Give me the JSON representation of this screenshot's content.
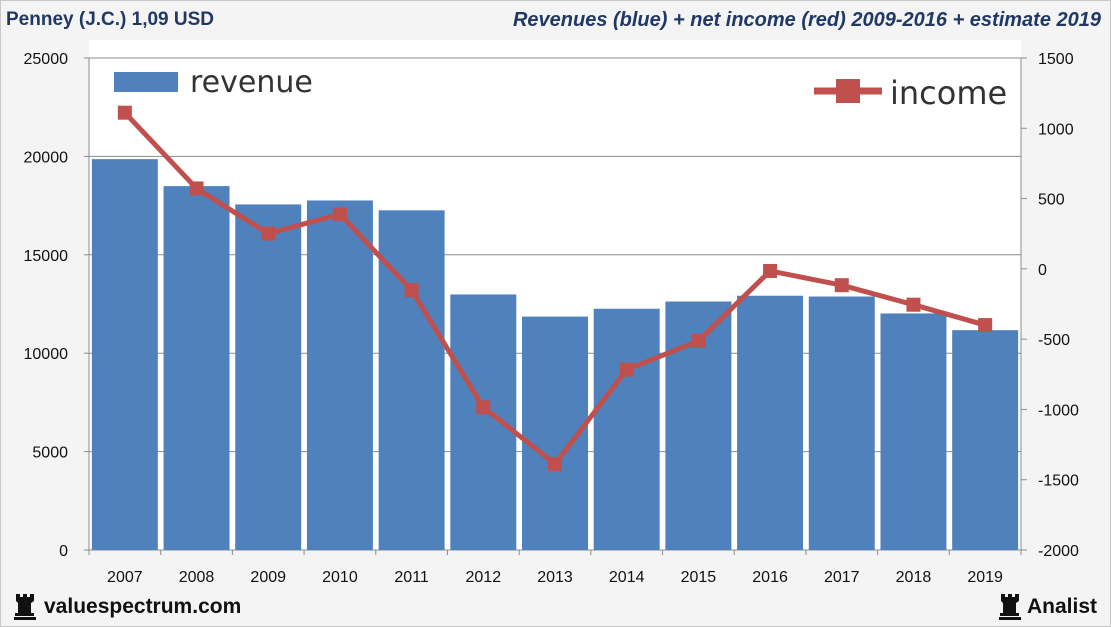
{
  "header": {
    "title_left": "Penney (J.C.) 1,09 USD",
    "title_right": "Revenues (blue) + net income (red) 2009-2016 + estimate 2019"
  },
  "footer": {
    "site": "valuespectrum.com",
    "brand": "Analist"
  },
  "colors": {
    "bar": "#4f81bd",
    "line": "#c0504d",
    "text": "#1f3864"
  },
  "icons": {
    "left": "rook-icon",
    "right": "rook-icon"
  },
  "chart_data": {
    "type": "bar+line",
    "categories": [
      "2007",
      "2008",
      "2009",
      "2010",
      "2011",
      "2012",
      "2013",
      "2014",
      "2015",
      "2016",
      "2017",
      "2018",
      "2019"
    ],
    "series": [
      {
        "name": "revenue",
        "type": "bar",
        "axis": "left",
        "values": [
          19860,
          18490,
          17560,
          17760,
          17260,
          12985,
          11860,
          12260,
          12625,
          12920,
          12880,
          12020,
          11170
        ]
      },
      {
        "name": "income",
        "type": "line",
        "axis": "right",
        "values": [
          1111,
          572,
          251,
          389,
          -152,
          -985,
          -1388,
          -717,
          -513,
          -15,
          -116,
          -255,
          -400
        ]
      }
    ],
    "y_left": {
      "min": 0,
      "max": 25000,
      "ticks": [
        0,
        5000,
        10000,
        15000,
        20000,
        25000
      ],
      "tick_labels": [
        "0",
        "5000",
        "10000",
        "15000",
        "20000",
        "25000"
      ]
    },
    "y_right": {
      "min": -2000,
      "max": 1500,
      "ticks": [
        -2000,
        -1500,
        -1000,
        -500,
        0,
        500,
        1000,
        1500
      ],
      "tick_labels": [
        "-2000",
        "-1500",
        "-1000",
        "-500",
        "0",
        "500",
        "1000",
        "1500"
      ]
    },
    "legend": {
      "revenue_label": "revenue",
      "income_label": "income",
      "revenue_position": "top-left",
      "income_position": "top-right"
    },
    "grid": true
  }
}
